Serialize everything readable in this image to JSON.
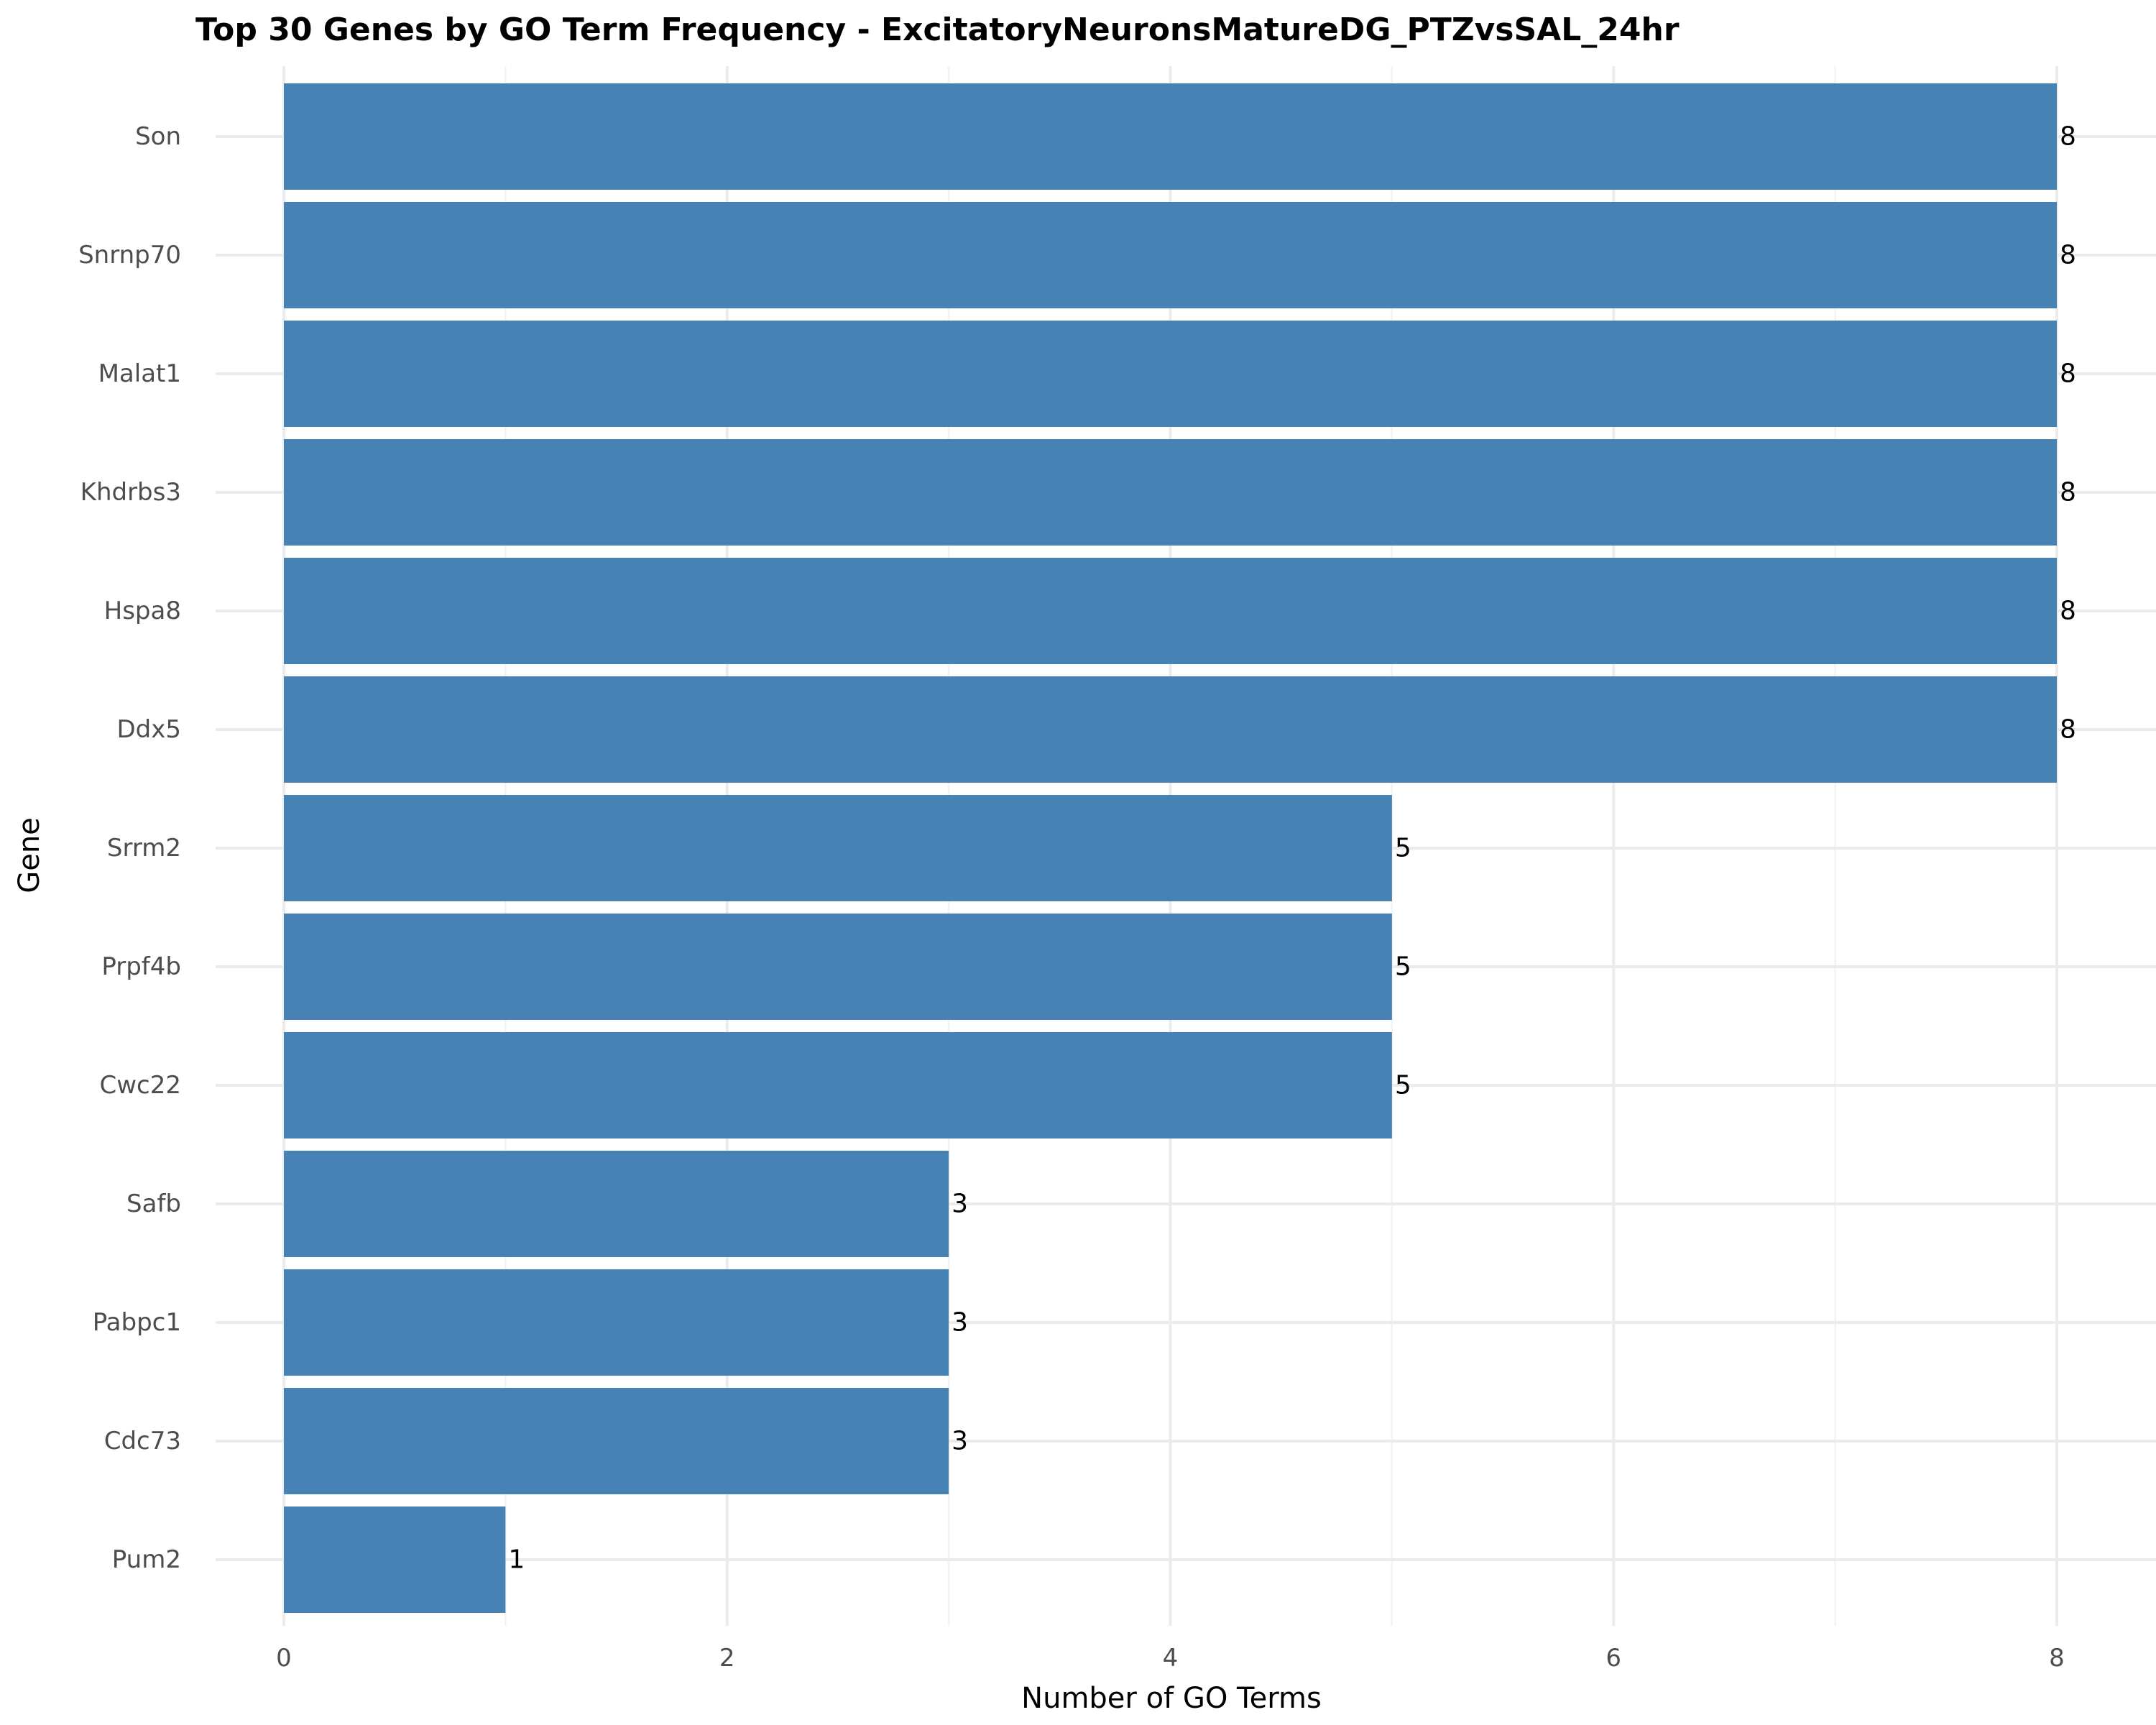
{
  "chart_data": {
    "type": "bar",
    "orientation": "horizontal",
    "title": "Top 30 Genes by GO Term Frequency - ExcitatoryNeuronsMatureDG_PTZvsSAL_24hr",
    "xlabel": "Number of GO Terms",
    "ylabel": "Gene",
    "categories": [
      "Son",
      "Snrnp70",
      "Malat1",
      "Khdrbs3",
      "Hspa8",
      "Ddx5",
      "Srrm2",
      "Prpf4b",
      "Cwc22",
      "Safb",
      "Pabpc1",
      "Cdc73",
      "Pum2"
    ],
    "values": [
      8,
      8,
      8,
      8,
      8,
      8,
      5,
      5,
      5,
      3,
      3,
      3,
      1
    ],
    "xlim": [
      0,
      8
    ],
    "x_ticks": [
      0,
      2,
      4,
      6,
      8
    ],
    "data_labels": [
      "8",
      "8",
      "8",
      "8",
      "8",
      "8",
      "5",
      "5",
      "5",
      "3",
      "3",
      "3",
      "1"
    ],
    "grid": true,
    "legend": "none",
    "bar_color": "#4682b4"
  }
}
